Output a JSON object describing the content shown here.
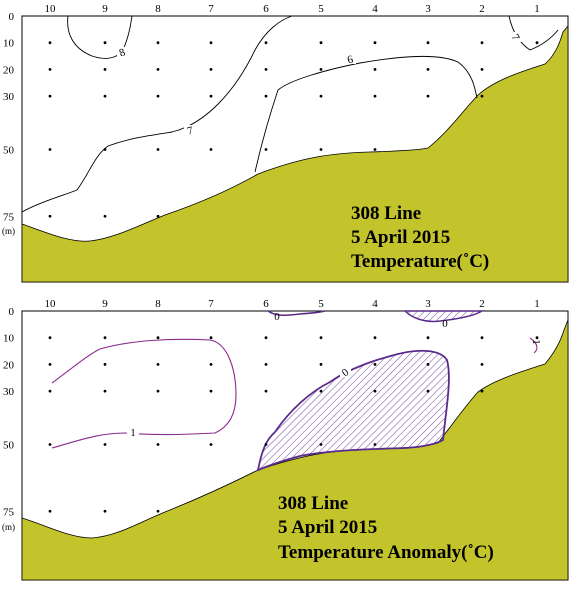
{
  "chart_data": [
    {
      "type": "contour",
      "title_lines": [
        "308 Line",
        "5 April 2015",
        "Temperature(˚C)"
      ],
      "x_ticks": [
        "10",
        "9",
        "8",
        "7",
        "6",
        "5",
        "4",
        "3",
        "2",
        "1"
      ],
      "y_ticks": [
        "0",
        "10",
        "20",
        "30",
        "50",
        "75"
      ],
      "y_unit": "(m)",
      "ylim": [
        0,
        85
      ],
      "contour_labels": [
        "8",
        "7",
        "6",
        "7"
      ],
      "colors": {
        "seabed": "#c3c32b",
        "contour": "#000000",
        "station_dot": "#000000"
      }
    },
    {
      "type": "contour",
      "title_lines": [
        "308 Line",
        "5 April 2015",
        "Temperature Anomaly(˚C)"
      ],
      "x_ticks": [
        "10",
        "9",
        "8",
        "7",
        "6",
        "5",
        "4",
        "3",
        "2",
        "1"
      ],
      "y_ticks": [
        "0",
        "10",
        "20",
        "30",
        "50",
        "75"
      ],
      "y_unit": "(m)",
      "ylim": [
        0,
        85
      ],
      "contour_labels": [
        "1",
        "0",
        "0",
        "0",
        "1"
      ],
      "colors": {
        "seabed": "#c3c32b",
        "contour": "#7a1f8f",
        "zero_contour": "#5a2a8c",
        "hatch": "#7a55a8",
        "station_dot": "#000000"
      }
    }
  ]
}
